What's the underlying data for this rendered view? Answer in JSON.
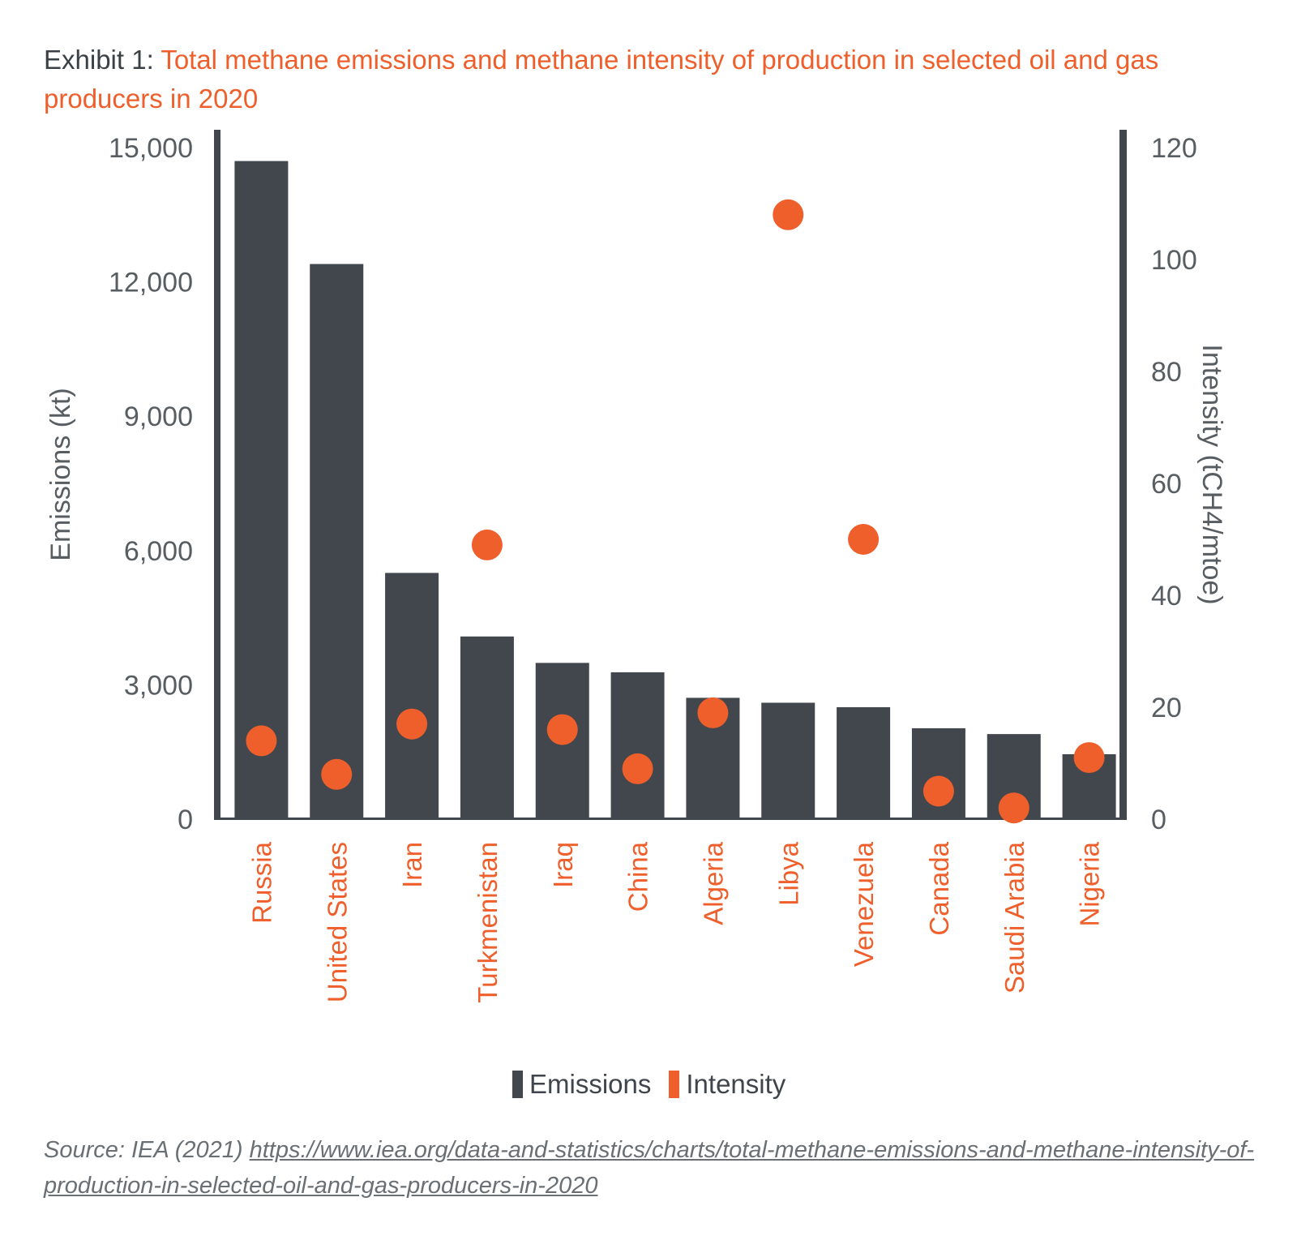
{
  "title": {
    "prefix": "Exhibit 1: ",
    "text": "Total methane emissions and methane intensity of production in selected oil and gas producers in 2020"
  },
  "colors": {
    "emissions": "#41474d",
    "intensity": "#ee5f2c",
    "axis": "#41474d",
    "tick_text": "#585d62",
    "category_text": "#ee5f2c"
  },
  "chart_data": {
    "type": "bar",
    "categories": [
      "Russia",
      "United States",
      "Iran",
      "Turkmenistan",
      "Iraq",
      "China",
      "Algeria",
      "Libya",
      "Venezuela",
      "Canada",
      "Saudi Arabia",
      "Nigeria"
    ],
    "series": [
      {
        "name": "Emissions",
        "type": "bar",
        "axis": "left",
        "values": [
          14700,
          12400,
          5500,
          4080,
          3490,
          3280,
          2710,
          2600,
          2500,
          2030,
          1900,
          1450
        ]
      },
      {
        "name": "Intensity",
        "type": "scatter",
        "axis": "right",
        "values": [
          14,
          8,
          17,
          49,
          16,
          9,
          19,
          108,
          50,
          5,
          2,
          11
        ]
      }
    ],
    "ylabel": "Emissions (kt)",
    "y2label": "Intensity (tCH4/mtoe)",
    "ylim": [
      0,
      15000
    ],
    "y2lim": [
      0,
      120
    ],
    "yticks": [
      "15,000",
      "12,000",
      "9,000",
      "6,000",
      "3,000",
      "0"
    ],
    "ytick_values": [
      15000,
      12000,
      9000,
      6000,
      3000,
      0
    ],
    "y2ticks": [
      "120",
      "100",
      "80",
      "60",
      "40",
      "20",
      "0"
    ],
    "y2tick_values": [
      120,
      100,
      80,
      60,
      40,
      20,
      0
    ],
    "legend": [
      {
        "label": "Emissions",
        "color": "#41474d"
      },
      {
        "label": "Intensity",
        "color": "#ee5f2c"
      }
    ],
    "grid": false,
    "legend_position": "bottom-center"
  },
  "source": {
    "prefix": "Source: IEA (2021) ",
    "url": "https://www.iea.org/data-and-statistics/charts/total-methane-emissions-and-methane-intensity-of-production-in-selected-oil-and-gas-producers-in-2020"
  }
}
